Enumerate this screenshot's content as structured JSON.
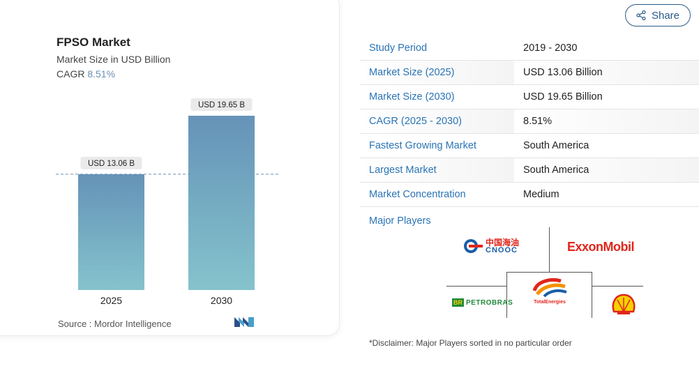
{
  "chart_data": {
    "type": "bar",
    "title": "FPSO Market",
    "subtitle": "Market Size in USD Billion",
    "cagr_label": "CAGR",
    "cagr_value": "8.51%",
    "categories": [
      "2025",
      "2030"
    ],
    "values": [
      13.06,
      19.65
    ],
    "data_labels": [
      "USD 13.06 B",
      "USD 19.65 B"
    ],
    "ylim": [
      0,
      19.65
    ],
    "grid": false,
    "reference_line_at": 13.06,
    "colors": {
      "bar_top": "#6593b8",
      "bar_bottom": "#85c3cc"
    }
  },
  "source": {
    "label": "Source :",
    "value": "Mordor Intelligence"
  },
  "share": {
    "label": "Share"
  },
  "facts": [
    {
      "key": "Study Period",
      "value": "2019 - 2030"
    },
    {
      "key": "Market Size (2025)",
      "value": "USD 13.06 Billion"
    },
    {
      "key": "Market Size (2030)",
      "value": "USD 19.65 Billion"
    },
    {
      "key": "CAGR (2025 - 2030)",
      "value": "8.51%"
    },
    {
      "key": "Fastest Growing Market",
      "value": "South America"
    },
    {
      "key": "Largest Market",
      "value": "South America"
    },
    {
      "key": "Market Concentration",
      "value": "Medium"
    }
  ],
  "players": {
    "heading": "Major Players",
    "logos": {
      "cnooc_cn": "中国海油",
      "cnooc_en": "CNOOC",
      "exxon": "ExxonMobil",
      "total": "TotalEnergies",
      "petrobras": "PETROBRAS",
      "br": "BR"
    }
  },
  "disclaimer": "*Disclaimer: Major Players sorted in no particular order"
}
